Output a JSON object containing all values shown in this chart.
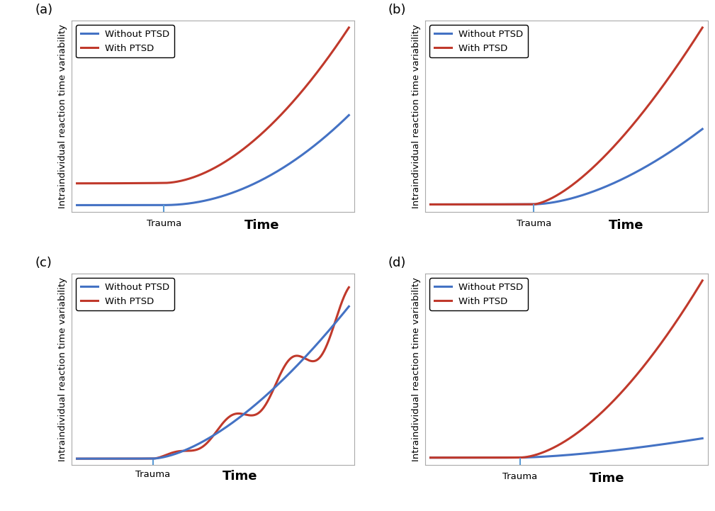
{
  "panel_labels": [
    "(a)",
    "(b)",
    "(c)",
    "(d)"
  ],
  "legend_labels": [
    "Without PTSD",
    "With PTSD"
  ],
  "blue_color": "#4472C4",
  "red_color": "#C0392B",
  "trauma_line_color": "#5B9BD5",
  "ylabel": "Intraindividual reaction time variability",
  "xlabel_trauma": "Trauma",
  "xlabel_time": "Time",
  "bg_color": "#ffffff",
  "line_width": 2.2,
  "trauma_lw": 1.5,
  "label_fontsize": 9.5,
  "panel_label_fontsize": 13,
  "legend_fontsize": 9.5,
  "time_fontsize": 13
}
